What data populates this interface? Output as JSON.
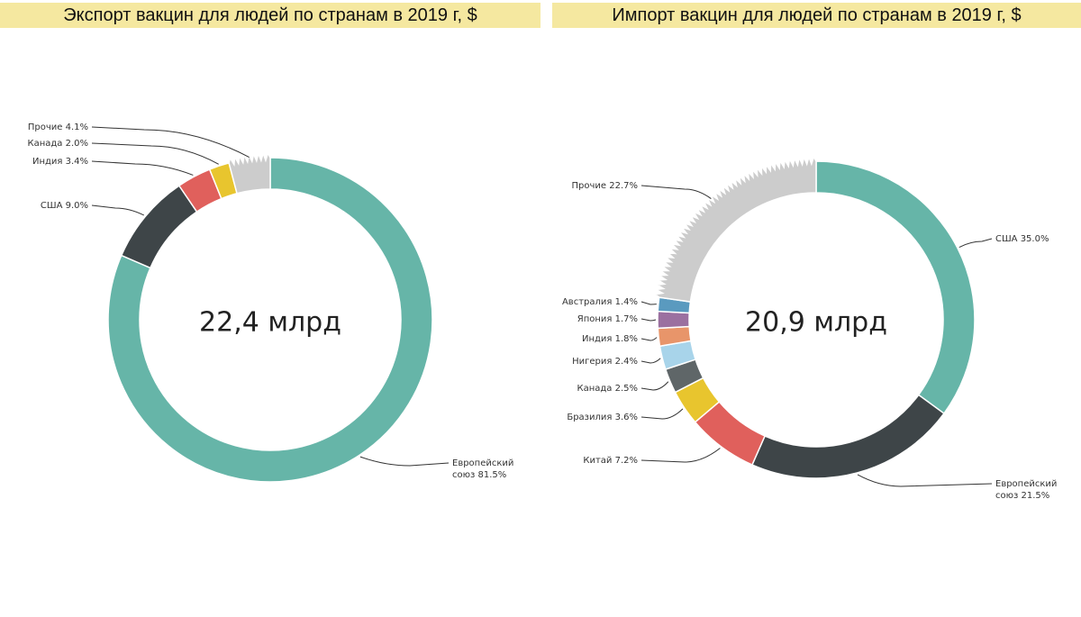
{
  "chart_data": [
    {
      "type": "pie",
      "title": "Экспорт вакцин для людей по странам в 2019 г, $",
      "total_label": "22,4 млрд",
      "slices": [
        {
          "name": "Европейский союз",
          "label_lines": [
            "Европейский",
            "союз 81.5%"
          ],
          "value": 81.5,
          "color": "#66b5a8",
          "jagged": false
        },
        {
          "name": "США",
          "label_lines": [
            "США 9.0%"
          ],
          "value": 9.0,
          "color": "#3e4548",
          "jagged": false
        },
        {
          "name": "Индия",
          "label_lines": [
            "Индия 3.4%"
          ],
          "value": 3.4,
          "color": "#e0605c",
          "jagged": false
        },
        {
          "name": "Канада",
          "label_lines": [
            "Канада 2.0%"
          ],
          "value": 2.0,
          "color": "#e8c52e",
          "jagged": false
        },
        {
          "name": "Прочие",
          "label_lines": [
            "Прочие 4.1%"
          ],
          "value": 4.1,
          "color": "#cccccc",
          "jagged": true
        }
      ]
    },
    {
      "type": "pie",
      "title": "Импорт вакцин для людей по странам в 2019 г, $",
      "total_label": "20,9 млрд",
      "slices": [
        {
          "name": "США",
          "label_lines": [
            "США 35.0%"
          ],
          "value": 35.0,
          "color": "#66b5a8",
          "jagged": false
        },
        {
          "name": "Европейский союз",
          "label_lines": [
            "Европейский",
            "союз 21.5%"
          ],
          "value": 21.5,
          "color": "#3e4548",
          "jagged": false
        },
        {
          "name": "Китай",
          "label_lines": [
            "Китай 7.2%"
          ],
          "value": 7.2,
          "color": "#e0605c",
          "jagged": false
        },
        {
          "name": "Бразилия",
          "label_lines": [
            "Бразилия 3.6%"
          ],
          "value": 3.6,
          "color": "#e8c52e",
          "jagged": false
        },
        {
          "name": "Канада",
          "label_lines": [
            "Канада 2.5%"
          ],
          "value": 2.5,
          "color": "#5f6668",
          "jagged": false
        },
        {
          "name": "Нигерия",
          "label_lines": [
            "Нигерия 2.4%"
          ],
          "value": 2.4,
          "color": "#a8d4ea",
          "jagged": false
        },
        {
          "name": "Индия",
          "label_lines": [
            "Индия 1.8%"
          ],
          "value": 1.8,
          "color": "#e8956a",
          "jagged": false
        },
        {
          "name": "Япония",
          "label_lines": [
            "Япония 1.7%"
          ],
          "value": 1.7,
          "color": "#9b70a0",
          "jagged": false
        },
        {
          "name": "Австралия",
          "label_lines": [
            "Австралия 1.4%"
          ],
          "value": 1.4,
          "color": "#5a9abf",
          "jagged": false
        },
        {
          "name": "Прочие",
          "label_lines": [
            "Прочие 22.7%"
          ],
          "value": 22.7,
          "color": "#cccccc",
          "jagged": true
        }
      ]
    }
  ]
}
